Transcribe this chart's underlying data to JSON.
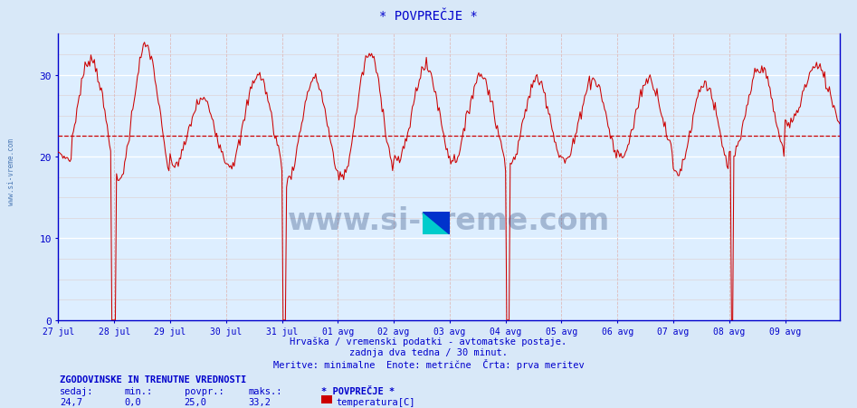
{
  "title": "* POVPREČJE *",
  "bg_color": "#d8e8f8",
  "plot_bg_color": "#ddeeff",
  "line_color": "#cc0000",
  "dashed_line_color": "#cc0000",
  "dashed_line_value": 22.5,
  "grid_color_h": "#ffffff",
  "grid_color_v": "#ddbbbb",
  "grid_minor_h": "#ddcccc",
  "axis_color": "#0000cc",
  "x_labels": [
    "27 jul",
    "28 jul",
    "29 jul",
    "30 jul",
    "31 jul",
    "01 avg",
    "02 avg",
    "03 avg",
    "04 avg",
    "05 avg",
    "06 avg",
    "07 avg",
    "08 avg",
    "09 avg"
  ],
  "y_ticks": [
    0,
    10,
    20,
    30
  ],
  "ylim": [
    0,
    35
  ],
  "subtitle1": "Hrvaška / vremenski podatki - avtomatske postaje.",
  "subtitle2": "zadnja dva tedna / 30 minut.",
  "subtitle3": "Meritve: minimalne  Enote: metrične  Črta: prva meritev",
  "footer_title": "ZGODOVINSKE IN TRENUTNE VREDNOSTI",
  "footer_col_headers": [
    "sedaj:",
    "min.:",
    "povpr.:",
    "maks.:",
    "* POVPREČJE *"
  ],
  "footer_col_values": [
    "24,7",
    "0,0",
    "25,0",
    "33,2"
  ],
  "footer_series_label": "temperatura[C]",
  "footer_series_color": "#cc0000",
  "watermark": "www.si-vreme.com",
  "watermark_color": "#1a3870",
  "sidebar_text": "www.si-vreme.com",
  "sidebar_color": "#3366aa",
  "n_points": 672,
  "total_days": 14
}
